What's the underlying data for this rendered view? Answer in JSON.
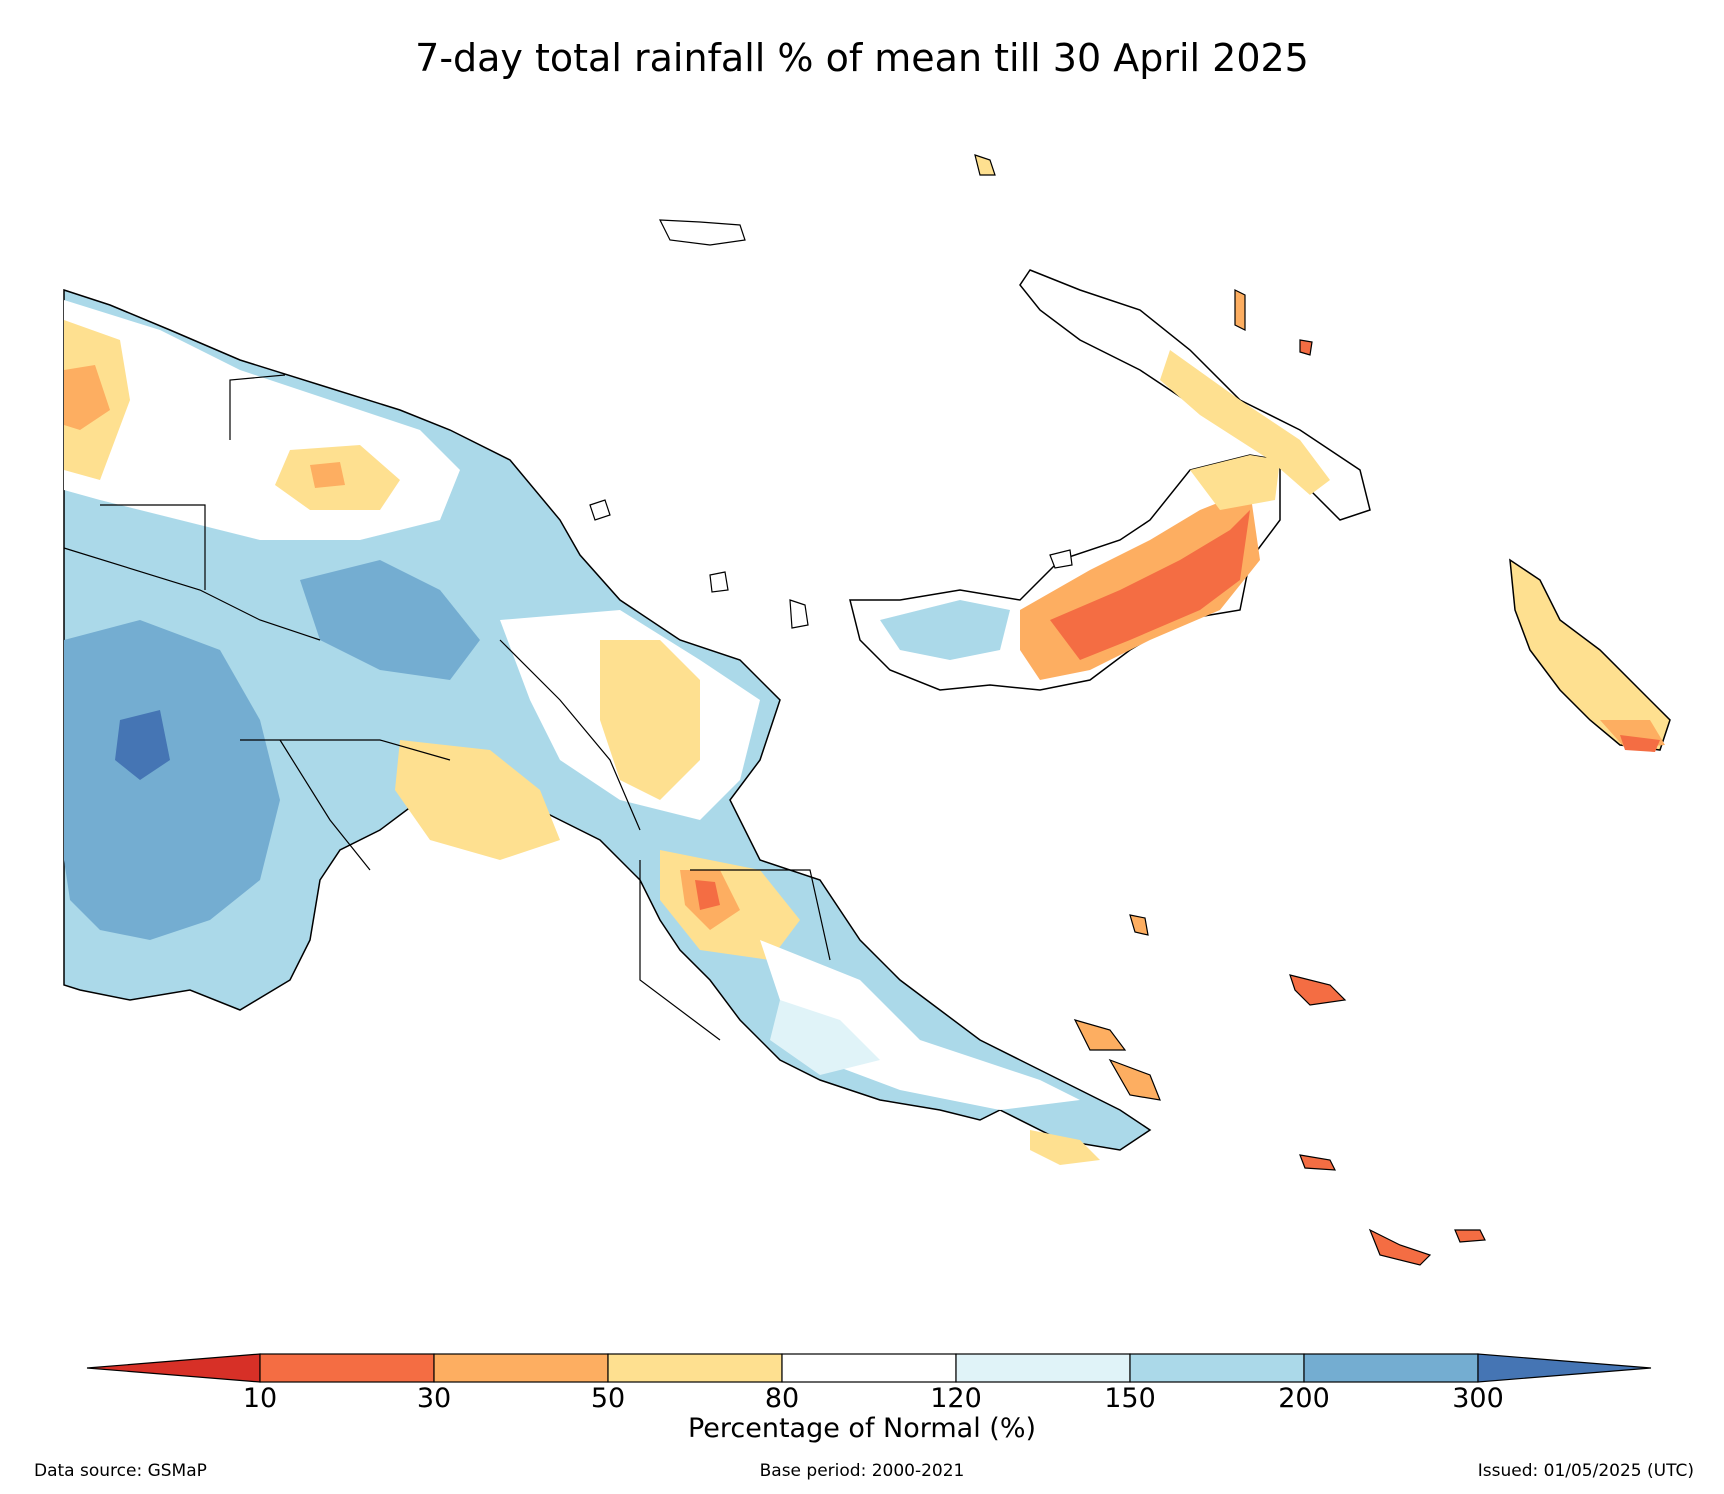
{
  "title": "7-day total rainfall % of mean till 30 April 2025",
  "colorbar": {
    "label": "Percentage of Normal (%)",
    "ticks": [
      "10",
      "30",
      "50",
      "80",
      "120",
      "150",
      "200",
      "300"
    ],
    "colors": {
      "below_10": "#d73027",
      "10_30": "#f46d43",
      "30_50": "#fdae61",
      "50_80": "#fee090",
      "80_120": "#ffffff",
      "120_150": "#e0f3f8",
      "150_200": "#abd9e9",
      "200_300": "#74add1",
      "above_300": "#4575b4"
    }
  },
  "footer": {
    "source": "Data source: GSMaP",
    "base_period": "Base period: 2000-2021",
    "issued": "Issued: 01/05/2025 (UTC)"
  }
}
